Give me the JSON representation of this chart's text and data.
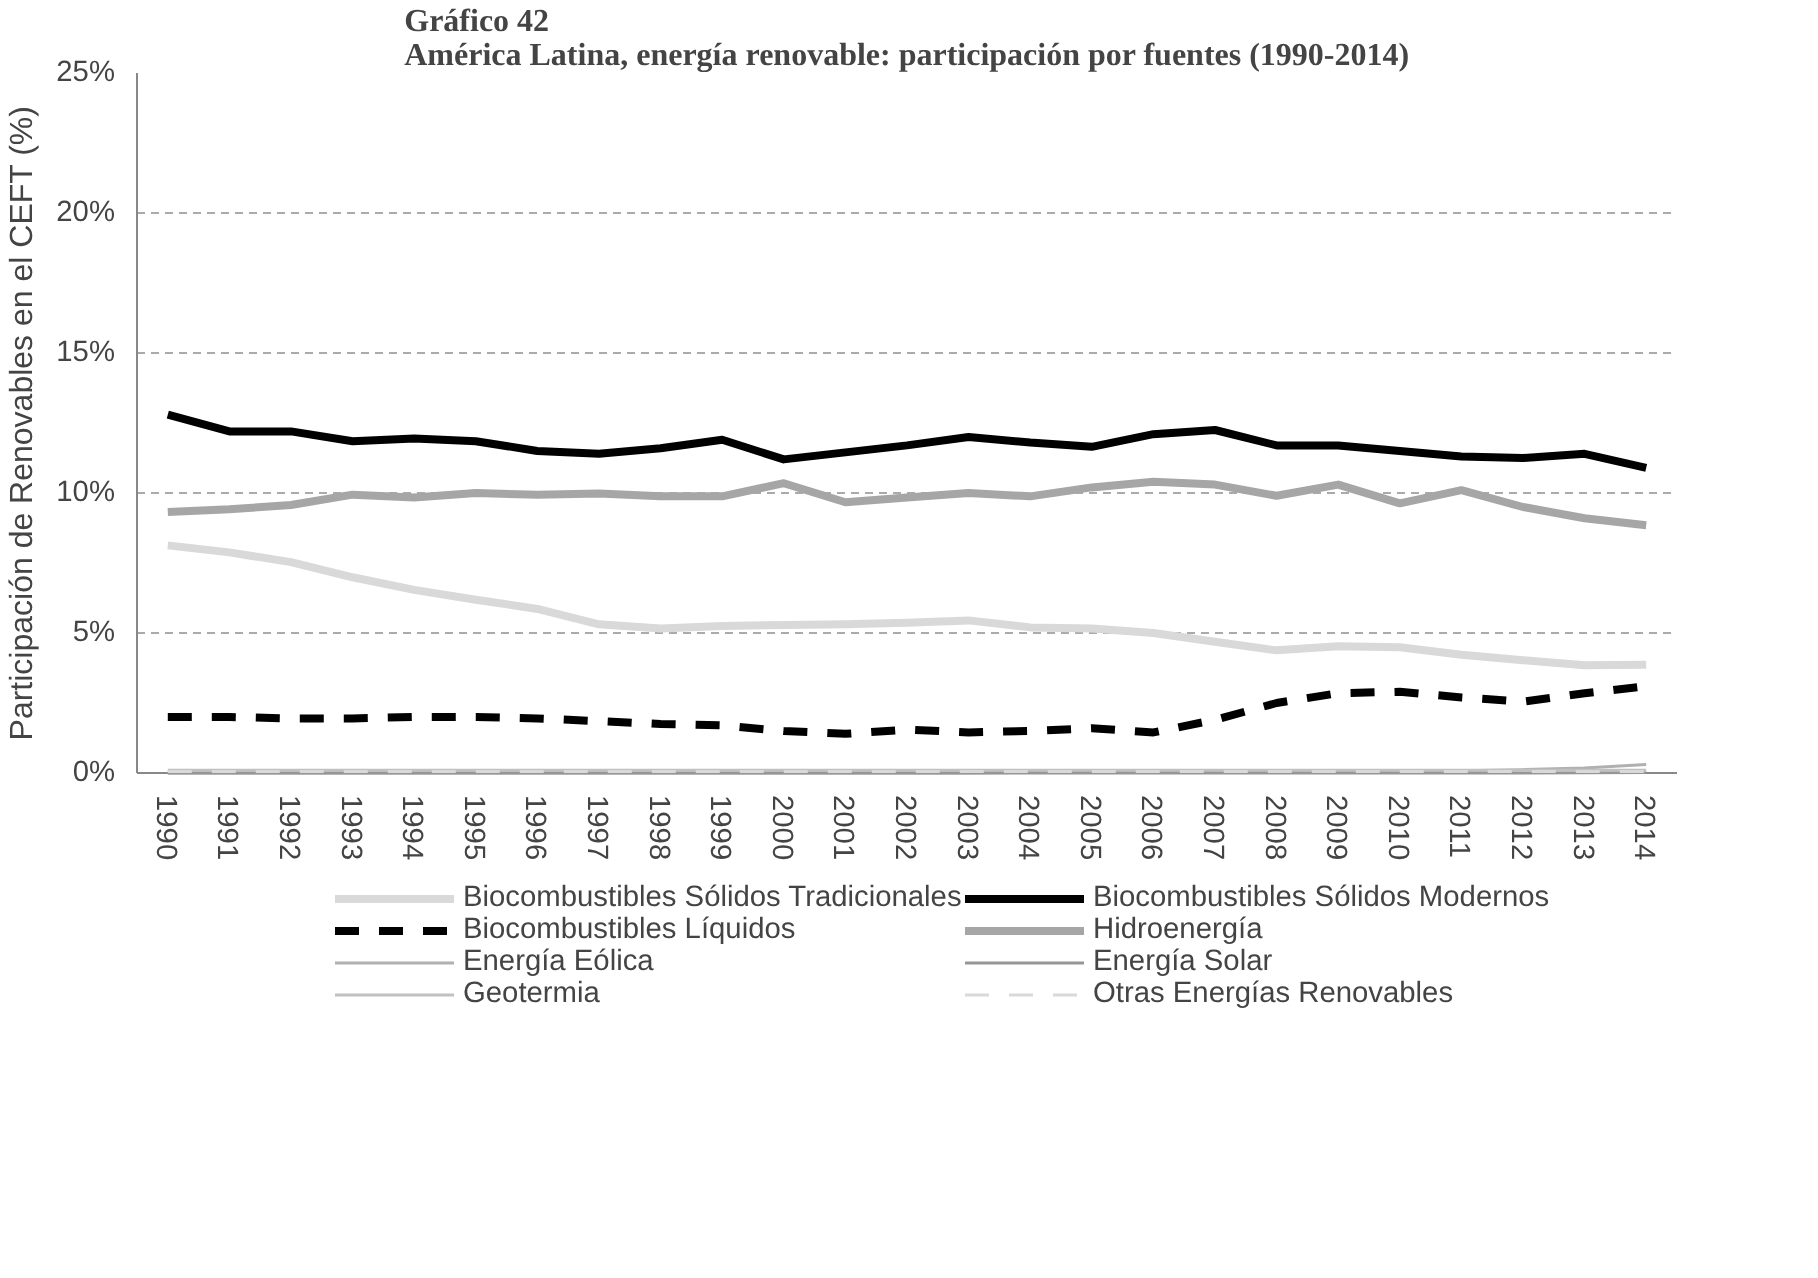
{
  "chart_data": {
    "type": "line",
    "title": "Gráfico 42\nAmérica Latina, energía renovable: participación por fuentes (1990-2014)",
    "ylabel": "Participación de Renovables en el CEFT (%)",
    "categories": [
      "1990",
      "1991",
      "1992",
      "1993",
      "1994",
      "1995",
      "1996",
      "1997",
      "1998",
      "1999",
      "2000",
      "2001",
      "2002",
      "2003",
      "2004",
      "2005",
      "2006",
      "2007",
      "2008",
      "2009",
      "2010",
      "2011",
      "2012",
      "2013",
      "2014"
    ],
    "ylim": [
      0,
      25
    ],
    "yticks": [
      {
        "value": 0,
        "label": "0%"
      },
      {
        "value": 5,
        "label": "5%"
      },
      {
        "value": 10,
        "label": "10%"
      },
      {
        "value": 15,
        "label": "15%"
      },
      {
        "value": 20,
        "label": "20%"
      },
      {
        "value": 25,
        "label": "25%"
      }
    ],
    "grid": "y",
    "legend": "bottom",
    "marker": "none",
    "series": [
      {
        "name": "Biocombustibles Sólidos Tradicionales",
        "color": "#d9d9d9",
        "line_style": "solid",
        "values": [
          8.13,
          7.88,
          7.53,
          6.99,
          6.54,
          6.19,
          5.86,
          5.31,
          5.16,
          5.25,
          5.29,
          5.31,
          5.37,
          5.45,
          5.2,
          5.16,
          5.0,
          4.69,
          4.38,
          4.53,
          4.49,
          4.22,
          4.03,
          3.85,
          3.87
        ]
      },
      {
        "name": "Biocombustibles Sólidos Modernos",
        "color": "#000000",
        "line_style": "solid",
        "values": [
          12.8,
          12.2,
          12.2,
          11.85,
          11.95,
          11.85,
          11.5,
          11.4,
          11.6,
          11.9,
          11.2,
          11.45,
          11.7,
          12.0,
          11.8,
          11.65,
          12.1,
          12.25,
          11.7,
          11.7,
          11.5,
          11.3,
          11.25,
          11.4,
          10.9
        ]
      },
      {
        "name": "Biocombustibles Líquidos",
        "color": "#000000",
        "line_style": "dashed",
        "values": [
          2.0,
          2.0,
          1.95,
          1.95,
          2.0,
          2.0,
          1.95,
          1.85,
          1.75,
          1.7,
          1.5,
          1.4,
          1.55,
          1.45,
          1.5,
          1.6,
          1.45,
          1.9,
          2.5,
          2.85,
          2.9,
          2.7,
          2.55,
          2.85,
          3.1
        ]
      },
      {
        "name": "Hidroenergía",
        "color": "#a6a6a6",
        "line_style": "solid",
        "values": [
          9.32,
          9.42,
          9.57,
          9.94,
          9.84,
          10.0,
          9.94,
          9.98,
          9.88,
          9.88,
          10.35,
          9.67,
          9.84,
          10.0,
          9.88,
          10.2,
          10.4,
          10.3,
          9.9,
          10.3,
          9.63,
          10.1,
          9.5,
          9.1,
          8.85
        ]
      },
      {
        "name": "Energía Eólica",
        "color": "#b0b0b0",
        "line_style": "solid",
        "values": [
          0,
          0,
          0,
          0,
          0,
          0,
          0,
          0,
          0,
          0,
          0,
          0,
          0,
          0,
          0.02,
          0.02,
          0.03,
          0.03,
          0.04,
          0.05,
          0.06,
          0.08,
          0.12,
          0.18,
          0.3
        ]
      },
      {
        "name": "Energía Solar",
        "color": "#969696",
        "line_style": "solid",
        "values": [
          0,
          0,
          0,
          0,
          0,
          0,
          0,
          0,
          0,
          0,
          0,
          0,
          0,
          0,
          0,
          0,
          0,
          0,
          0,
          0,
          0,
          0,
          0,
          0.01,
          0.02
        ]
      },
      {
        "name": "Geotermia",
        "color": "#c0c0c0",
        "line_style": "solid",
        "values": [
          0.1,
          0.1,
          0.1,
          0.1,
          0.1,
          0.1,
          0.1,
          0.1,
          0.1,
          0.1,
          0.1,
          0.1,
          0.1,
          0.1,
          0.1,
          0.1,
          0.1,
          0.1,
          0.1,
          0.1,
          0.1,
          0.1,
          0.1,
          0.1,
          0.1
        ]
      },
      {
        "name": "Otras Energías Renovables",
        "color": "#d9d9d9",
        "line_style": "dashed",
        "values": [
          0.05,
          0.05,
          0.05,
          0.05,
          0.05,
          0.05,
          0.05,
          0.05,
          0.05,
          0.05,
          0.05,
          0.05,
          0.05,
          0.05,
          0.05,
          0.05,
          0.05,
          0.05,
          0.05,
          0.05,
          0.05,
          0.05,
          0.05,
          0.05,
          0.05
        ]
      }
    ]
  }
}
